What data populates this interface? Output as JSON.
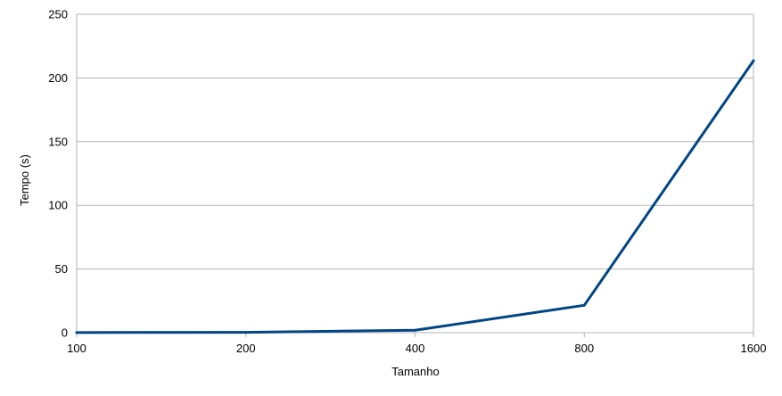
{
  "chart_data": {
    "type": "line",
    "title": "",
    "xlabel": "Tamanho",
    "ylabel": "Tempo (s)",
    "categories": [
      "100",
      "200",
      "400",
      "800",
      "1600"
    ],
    "series": [
      {
        "values": [
          0.1,
          0.3,
          1.9,
          21.5,
          213.5
        ],
        "color": "#004586"
      }
    ],
    "ylim": [
      0,
      250
    ],
    "yticks": [
      0,
      50,
      100,
      150,
      200,
      250
    ],
    "grid": true,
    "legend": "none"
  }
}
